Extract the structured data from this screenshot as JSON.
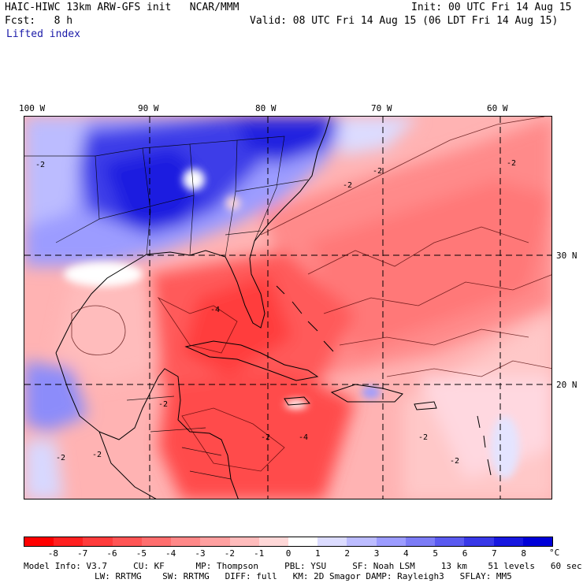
{
  "header": {
    "title": "HAIC-HIWC 13km ARW-GFS init   NCAR/MMM",
    "init": "Init: 00 UTC Fri 14 Aug 15",
    "fcst": "Fcst:   8 h",
    "valid": "Valid: 08 UTC Fri 14 Aug 15 (06 LDT Fri 14 Aug 15)",
    "field": "Lifted index"
  },
  "lon_labels": [
    "100 W",
    "90 W",
    "80 W",
    "70 W",
    "60 W"
  ],
  "lat_labels": [
    "30 N",
    "20 N"
  ],
  "contour_labels": [
    "-2",
    "-2",
    "-2",
    "-2",
    "-4",
    "-2",
    "-2",
    "-2",
    "-2",
    "-2",
    "-4",
    "-2"
  ],
  "colorbar": {
    "ticks": [
      "-8",
      "-7",
      "-6",
      "-5",
      "-4",
      "-3",
      "-2",
      "-1",
      "0",
      "1",
      "2",
      "3",
      "4",
      "5",
      "6",
      "7",
      "8"
    ],
    "unit": "°C",
    "colors": [
      "#ff0000",
      "#ff2020",
      "#ff3c3c",
      "#ff5555",
      "#ff6e6e",
      "#ff8888",
      "#ffa0a0",
      "#ffbcbc",
      "#ffd8d8",
      "#ffffff",
      "#dcdcff",
      "#bcbcff",
      "#9c9cff",
      "#7c7cf6",
      "#5a5af0",
      "#3838e8",
      "#1818e0",
      "#0000d8"
    ]
  },
  "footer": {
    "line1": "Model Info: V3.7     CU: KF      MP: Thompson     PBL: YSU     SF: Noah LSM     13 km    51 levels   60 sec",
    "line2": "LW: RRTMG    SW: RRTMG   DIFF: full   KM: 2D Smagor DAMP: Rayleigh3   SFLAY: MM5"
  }
}
